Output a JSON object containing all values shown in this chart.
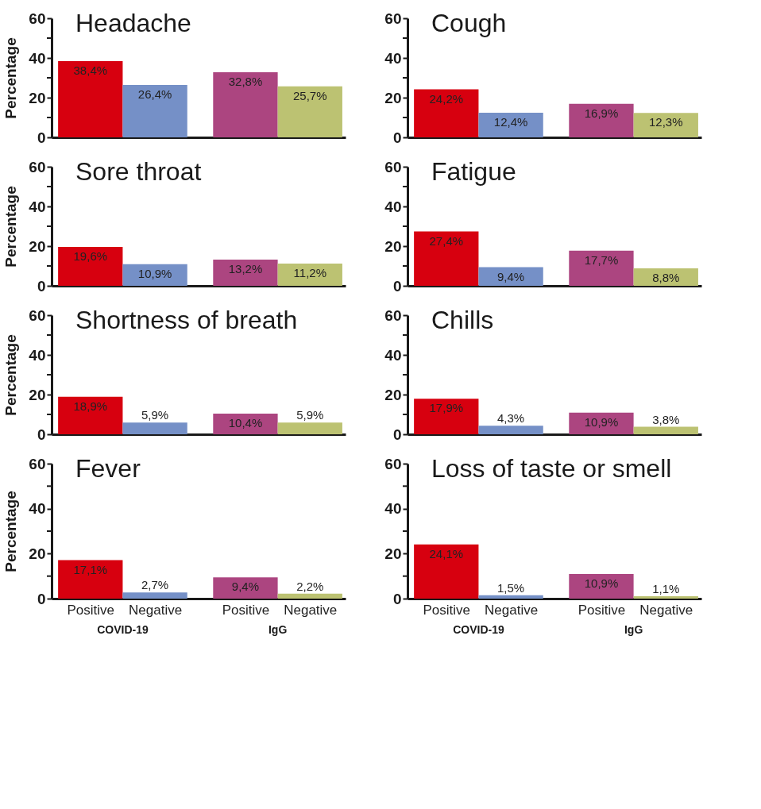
{
  "chart_data": [
    {
      "type": "bar",
      "title": "Headache",
      "ylabel": "Percentage",
      "categories": [
        null,
        null,
        null,
        null
      ],
      "values": [
        38.4,
        26.4,
        32.8,
        25.7
      ],
      "value_labels": [
        "38,4%",
        "26,4%",
        "32,8%",
        "25,7%"
      ],
      "colors": [
        "#d7000f",
        "#7590c7",
        "#ac4580",
        "#bcc272"
      ],
      "ylim": [
        0,
        60
      ],
      "yticks": [
        0,
        {
          "value": 10,
          "label": null
        },
        20,
        {
          "value": 30,
          "label": null
        },
        40,
        {
          "value": 50,
          "label": null
        },
        60
      ],
      "tick_labels": "y"
    },
    {
      "type": "bar",
      "title": "Cough",
      "categories": [
        null,
        null,
        null,
        null
      ],
      "values": [
        24.2,
        12.4,
        16.9,
        12.3
      ],
      "value_labels": [
        "24,2%",
        "12,4%",
        "16,9%",
        "12,3%"
      ],
      "colors": [
        "#d7000f",
        "#7590c7",
        "#ac4580",
        "#bcc272"
      ],
      "ylim": [
        0,
        60
      ],
      "yticks": [
        0,
        {
          "value": 10,
          "label": null
        },
        20,
        {
          "value": 30,
          "label": null
        },
        40,
        {
          "value": 50,
          "label": null
        },
        60
      ],
      "tick_labels": "y"
    },
    {
      "type": "bar",
      "title": "Sore throat",
      "ylabel": "Percentage",
      "categories": [
        null,
        null,
        null,
        null
      ],
      "values": [
        19.6,
        10.9,
        13.2,
        11.2
      ],
      "value_labels": [
        "19,6%",
        "10,9%",
        "13,2%",
        "11,2%"
      ],
      "colors": [
        "#d7000f",
        "#7590c7",
        "#ac4580",
        "#bcc272"
      ],
      "ylim": [
        0,
        60
      ],
      "yticks": [
        0,
        {
          "value": 10,
          "label": null
        },
        20,
        {
          "value": 30,
          "label": null
        },
        40,
        {
          "value": 50,
          "label": null
        },
        60
      ],
      "tick_labels": "y"
    },
    {
      "type": "bar",
      "title": "Fatigue",
      "categories": [
        null,
        null,
        null,
        null
      ],
      "values": [
        27.4,
        9.4,
        17.7,
        8.8
      ],
      "value_labels": [
        "27,4%",
        "9,4%",
        "17,7%",
        "8,8%"
      ],
      "colors": [
        "#d7000f",
        "#7590c7",
        "#ac4580",
        "#bcc272"
      ],
      "ylim": [
        0,
        60
      ],
      "yticks": [
        0,
        {
          "value": 10,
          "label": null
        },
        20,
        {
          "value": 30,
          "label": null
        },
        40,
        {
          "value": 50,
          "label": null
        },
        60
      ],
      "tick_labels": "y"
    },
    {
      "type": "bar",
      "title": "Shortness of breath",
      "ylabel": "Percentage",
      "categories": [
        null,
        null,
        null,
        null
      ],
      "values": [
        18.9,
        5.9,
        10.4,
        5.9
      ],
      "value_labels": [
        "18,9%",
        "5,9%",
        "10,4%",
        "5,9%"
      ],
      "colors": [
        "#d7000f",
        "#7590c7",
        "#ac4580",
        "#bcc272"
      ],
      "ylim": [
        0,
        60
      ],
      "yticks": [
        0,
        {
          "value": 10,
          "label": null
        },
        20,
        {
          "value": 30,
          "label": null
        },
        40,
        {
          "value": 50,
          "label": null
        },
        60
      ],
      "tick_labels": "y"
    },
    {
      "type": "bar",
      "title": "Chills",
      "categories": [
        null,
        null,
        null,
        null
      ],
      "values": [
        17.9,
        4.3,
        10.9,
        3.8
      ],
      "value_labels": [
        "17,9%",
        "4,3%",
        "10,9%",
        "3,8%"
      ],
      "colors": [
        "#d7000f",
        "#7590c7",
        "#ac4580",
        "#bcc272"
      ],
      "ylim": [
        0,
        60
      ],
      "yticks": [
        0,
        {
          "value": 10,
          "label": null
        },
        20,
        {
          "value": 30,
          "label": null
        },
        40,
        {
          "value": 50,
          "label": null
        },
        60
      ],
      "tick_labels": "y"
    },
    {
      "type": "bar",
      "title": "Fever",
      "ylabel": "Percentage",
      "categories": [
        "Positive",
        "Negative",
        "Positive",
        "Negative"
      ],
      "values": [
        17.1,
        2.7,
        9.4,
        2.2
      ],
      "value_labels": [
        "17,1%",
        "2,7%",
        "9,4%",
        "2,2%"
      ],
      "colors": [
        "#d7000f",
        "#7590c7",
        "#ac4580",
        "#bcc272"
      ],
      "ylim": [
        0,
        60
      ],
      "yticks": [
        0,
        {
          "value": 10,
          "label": null
        },
        20,
        {
          "value": 30,
          "label": null
        },
        40,
        {
          "value": 50,
          "label": null
        },
        60
      ],
      "annotations": [
        "COVID-19",
        "IgG"
      ]
    },
    {
      "type": "bar",
      "title": "Loss of taste or smell",
      "categories": [
        "Positive",
        "Negative",
        "Positive",
        "Negative"
      ],
      "values": [
        24.1,
        1.5,
        10.9,
        1.1
      ],
      "value_labels": [
        "24,1%",
        "1,5%",
        "10,9%",
        "1,1%"
      ],
      "colors": [
        "#d7000f",
        "#7590c7",
        "#ac4580",
        "#bcc272"
      ],
      "ylim": [
        0,
        60
      ],
      "yticks": [
        0,
        {
          "value": 10,
          "label": null
        },
        20,
        {
          "value": 30,
          "label": null
        },
        40,
        {
          "value": 50,
          "label": null
        },
        60
      ],
      "annotations": [
        "COVID-19",
        "IgG"
      ]
    }
  ]
}
